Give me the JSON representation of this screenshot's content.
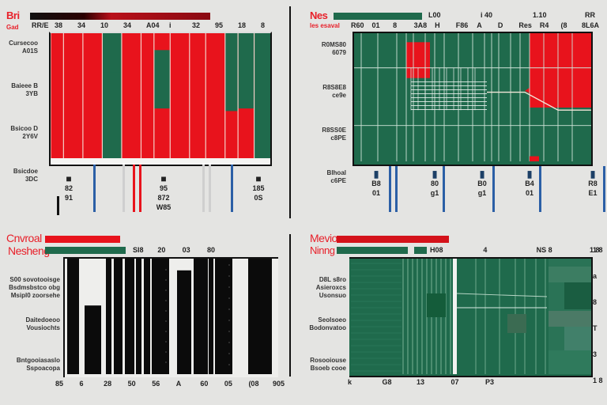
{
  "colors": {
    "red": "#e8131c",
    "green": "#1f6a4c",
    "black": "#0b0b0b",
    "blue": "#2b5fa6",
    "background": "#e4e4e2"
  },
  "chart_data": [
    {
      "type": "heatmap",
      "title": "Bri",
      "subtitle": "Gad",
      "legend": [
        {
          "name": "series-a",
          "color": "#a00000"
        }
      ],
      "xticks": [
        "RR/E",
        "38",
        "34",
        "10",
        "34",
        "A04",
        "i",
        "32",
        "95",
        "18",
        "8"
      ],
      "ylabels": [
        [
          "Cursecoo",
          "A01S"
        ],
        [
          "Baieee B",
          "3YB"
        ],
        [
          "Bsicoo D",
          "2Y6V"
        ],
        [
          "Bsicdoe",
          "3DC"
        ]
      ],
      "columns": [
        {
          "color": "red",
          "width": 2
        },
        {
          "color": "red",
          "width": 3
        },
        {
          "color": "red",
          "width": 3
        },
        {
          "color": "green",
          "width": 3,
          "split": 0.3
        },
        {
          "color": "red",
          "width": 3
        },
        {
          "color": "red",
          "width": 2
        },
        {
          "color": "red",
          "width": 2.5,
          "greenBand": [
            0.13,
            0.58
          ]
        },
        {
          "color": "red",
          "width": 3
        },
        {
          "color": "red",
          "width": 2.5
        },
        {
          "color": "red",
          "width": 3
        },
        {
          "color": "green",
          "width": 2,
          "splitRed": [
            0.6,
            1.0
          ]
        },
        {
          "color": "green",
          "width": 2.5,
          "splitRed": [
            0.58,
            1.0
          ]
        },
        {
          "color": "green",
          "width": 2.5
        }
      ],
      "footer_ticks": [
        [
          "82",
          "91"
        ],
        [
          "95",
          "872",
          "W85"
        ],
        [
          "185",
          "0S"
        ]
      ]
    },
    {
      "type": "heatmap",
      "title": "Nes",
      "subtitle": "les esaval",
      "legend": [
        {
          "name": "series-b",
          "color": "#1f6a4c"
        }
      ],
      "xticks_top": [
        "L00",
        "i 40",
        "1.10",
        "RR"
      ],
      "xticks": [
        "R60",
        "01",
        "8",
        "3A8",
        "H",
        "F86",
        "A",
        "D",
        "Res",
        "R4",
        "(8",
        "8L6A"
      ],
      "ylabels": [
        [
          "R0MS80",
          "6079"
        ],
        [
          "R8S8E8",
          "ce9e"
        ],
        [
          "R8SS0E",
          "c8PE"
        ],
        [
          "Blhoal",
          "c6PE"
        ]
      ],
      "red_regions": [
        [
          0.74,
          0.0,
          1.0,
          0.58
        ],
        [
          0.22,
          0.07,
          0.32,
          0.35
        ]
      ],
      "footer_ticks": [
        [
          "B8",
          "01"
        ],
        [
          "80",
          "g1"
        ],
        [
          "B0",
          "g1"
        ],
        [
          "B4",
          "01"
        ],
        [
          "R8",
          "E1"
        ]
      ]
    },
    {
      "type": "bar",
      "title": "Cnvroal",
      "subtitle": "Nesheng",
      "legend": [
        {
          "name": "series-c",
          "color": "#e8131c"
        },
        {
          "name": "series-d",
          "color": "#1f6a4c"
        }
      ],
      "xticks_top": [
        "SI8",
        "20",
        "03",
        "80"
      ],
      "xticks": [
        "85",
        "6",
        "28",
        "50",
        "56",
        "A",
        "60",
        "05",
        "(08",
        "905"
      ],
      "ylabels": [
        [
          "S00 sovotooisge",
          "Bsdmsbstco obg",
          "Msipl0 zoorsehe"
        ],
        [
          "Daitedoeoo",
          "Vousiochts"
        ],
        [
          "Bntgooiasaslo",
          "Sspoacopa"
        ]
      ],
      "bars": [
        1,
        0.6,
        1,
        1,
        1,
        1,
        1,
        1,
        0.9,
        1,
        1,
        1,
        1,
        1
      ]
    },
    {
      "type": "heatmap",
      "title": "Mevio",
      "subtitle": "Ninng",
      "legend": [
        {
          "name": "series-e",
          "color": "#e8131c"
        },
        {
          "name": "series-f",
          "color": "#1f6a4c"
        }
      ],
      "xticks_top": [
        "H08",
        "4",
        "NS 8",
        "1 8"
      ],
      "xticks": [
        "k",
        "G8",
        "13",
        "07",
        "P3"
      ],
      "right_ticks": [
        "1 8",
        "a",
        "8",
        "T",
        "3",
        "1 8"
      ],
      "ylabels": [
        [
          "D8L s8ro",
          "Asieroxcs",
          "Usonsuo"
        ],
        [
          "Seolsoeo",
          "Bodonvatoo"
        ],
        [
          "Rosooiouse",
          "Bsoeb cooe"
        ]
      ]
    }
  ]
}
